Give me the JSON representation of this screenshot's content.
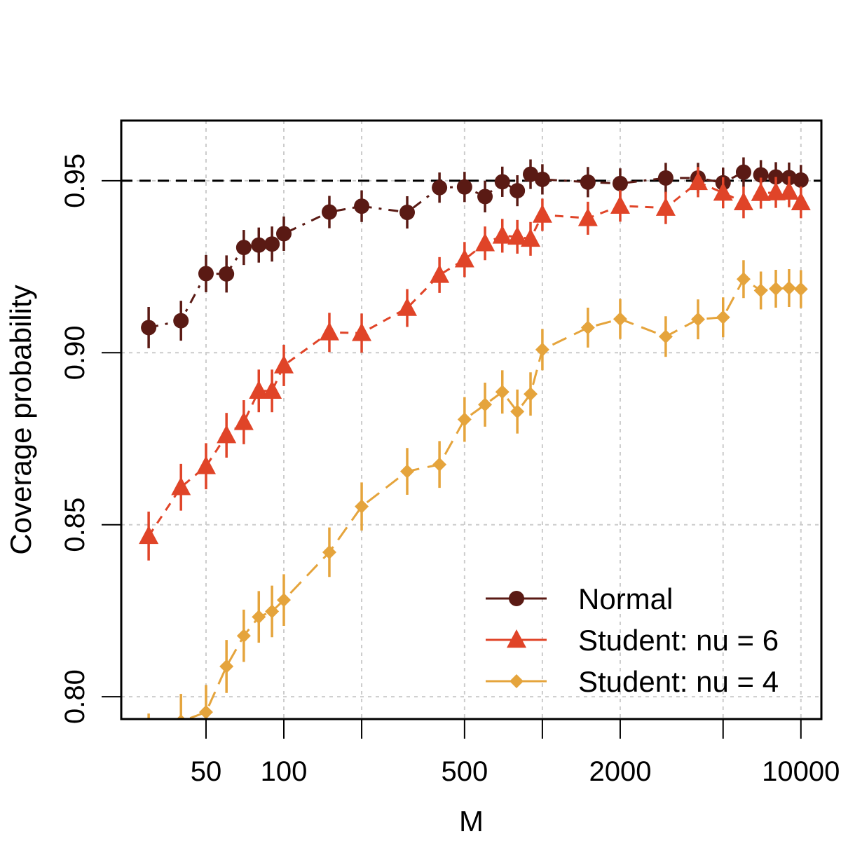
{
  "chart_data": {
    "type": "scatter",
    "title": "",
    "xlabel": "M",
    "ylabel": "Coverage probability",
    "x_scale": "log",
    "xlim": [
      23.5,
      12000
    ],
    "ylim": [
      0.7935,
      0.9675
    ],
    "x_ticks": [
      50,
      100,
      500,
      2000,
      10000
    ],
    "x_tick_labels": [
      "50",
      "100",
      "500",
      "2000",
      "10000"
    ],
    "x_minor_ticks": [
      200,
      1000,
      5000
    ],
    "y_ticks": [
      0.8,
      0.85,
      0.9,
      0.95
    ],
    "y_tick_labels": [
      "0.80",
      "0.85",
      "0.90",
      "0.95"
    ],
    "grid": true,
    "reference_line": 0.95,
    "legend_position": "bottom-right",
    "x": [
      30,
      40,
      50,
      60,
      70,
      80,
      90,
      100,
      150,
      200,
      300,
      400,
      500,
      600,
      700,
      800,
      900,
      1000,
      1500,
      2000,
      3000,
      4000,
      5000,
      6000,
      7000,
      8000,
      9000,
      10000
    ],
    "series": [
      {
        "name": "Normal",
        "color": "#5a1a14",
        "marker": "circle",
        "line_style": "dash-dot",
        "values": [
          0.9073,
          0.9093,
          0.923,
          0.9229,
          0.9306,
          0.9313,
          0.9316,
          0.9346,
          0.9409,
          0.9426,
          0.9408,
          0.948,
          0.9482,
          0.9454,
          0.9497,
          0.9471,
          0.9519,
          0.9504,
          0.9496,
          0.9492,
          0.9508,
          0.9508,
          0.9494,
          0.9525,
          0.9517,
          0.9511,
          0.9509,
          0.9502
        ],
        "errors": [
          0.006,
          0.0058,
          0.0054,
          0.0054,
          0.0051,
          0.0051,
          0.0051,
          0.005,
          0.0047,
          0.0046,
          0.0047,
          0.0044,
          0.0044,
          0.0046,
          0.0044,
          0.0045,
          0.0043,
          0.0044,
          0.0044,
          0.0044,
          0.0044,
          0.0044,
          0.0044,
          0.0043,
          0.0043,
          0.0043,
          0.0044,
          0.0044
        ]
      },
      {
        "name": "Student: nu = 6",
        "color": "#e04428",
        "marker": "triangle",
        "line_style": "dashed",
        "values": [
          0.8467,
          0.8609,
          0.867,
          0.876,
          0.8798,
          0.8889,
          0.8889,
          0.8963,
          0.9059,
          0.9057,
          0.913,
          0.9226,
          0.9271,
          0.9318,
          0.934,
          0.9337,
          0.9331,
          0.9401,
          0.9391,
          0.9427,
          0.9421,
          0.9496,
          0.9465,
          0.9437,
          0.9464,
          0.9466,
          0.9468,
          0.9437
        ],
        "errors": [
          0.0071,
          0.0068,
          0.0067,
          0.0065,
          0.0064,
          0.0062,
          0.0062,
          0.006,
          0.0057,
          0.0057,
          0.0055,
          0.0052,
          0.0051,
          0.0049,
          0.0049,
          0.0049,
          0.0049,
          0.0047,
          0.0048,
          0.0046,
          0.0047,
          0.0044,
          0.0045,
          0.0046,
          0.0045,
          0.0045,
          0.0045,
          0.0046
        ]
      },
      {
        "name": "Student: nu = 4",
        "color": "#e5a43c",
        "marker": "diamond",
        "line_style": "long-dash",
        "values": [
          0.787,
          0.7928,
          0.7955,
          0.8088,
          0.8177,
          0.8232,
          0.8248,
          0.8281,
          0.842,
          0.8553,
          0.8655,
          0.8675,
          0.8806,
          0.8849,
          0.8886,
          0.8829,
          0.888,
          0.9009,
          0.9073,
          0.9098,
          0.9047,
          0.9097,
          0.9103,
          0.9214,
          0.9181,
          0.9186,
          0.9188,
          0.9185
        ],
        "errors": [
          0.0081,
          0.008,
          0.0079,
          0.0077,
          0.0076,
          0.0075,
          0.0075,
          0.0075,
          0.0072,
          0.007,
          0.0068,
          0.0068,
          0.0065,
          0.0064,
          0.0063,
          0.0064,
          0.0063,
          0.006,
          0.0058,
          0.0058,
          0.0059,
          0.0058,
          0.0058,
          0.0055,
          0.0055,
          0.0055,
          0.0055,
          0.0055
        ]
      }
    ]
  }
}
